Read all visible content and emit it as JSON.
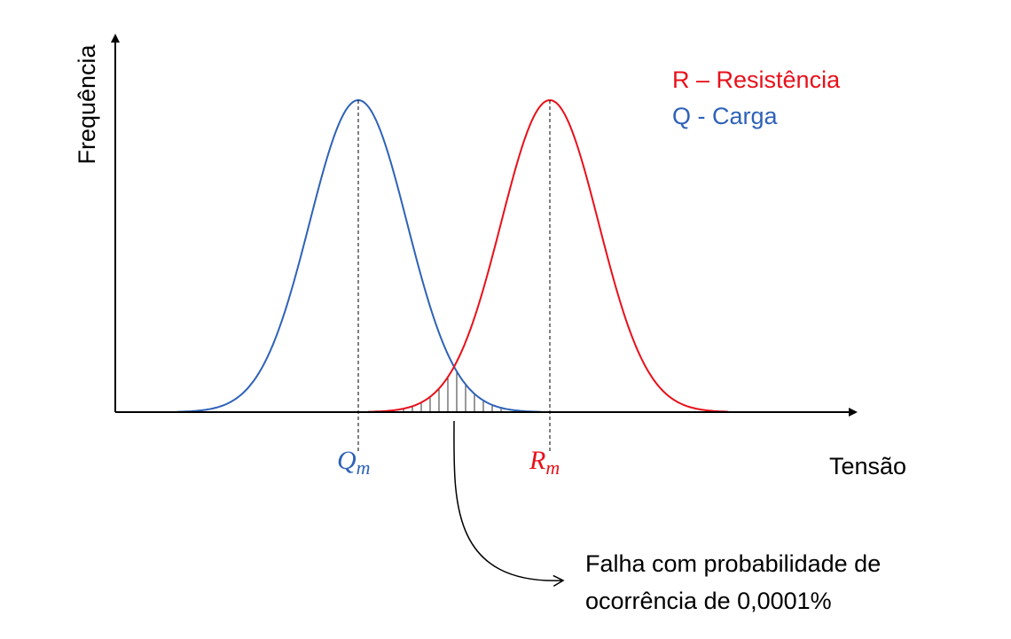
{
  "axis": {
    "y_label": "Frequência",
    "x_label": "Tensão"
  },
  "legend": {
    "r": "R – Resistência",
    "q": "Q - Carga"
  },
  "markers": {
    "q": {
      "symbol": "Q",
      "subscript": "m"
    },
    "r": {
      "symbol": "R",
      "subscript": "m"
    }
  },
  "annotation": {
    "lines": [
      "Falha com probabilidade de",
      "ocorrência de 0,0001%"
    ]
  }
}
